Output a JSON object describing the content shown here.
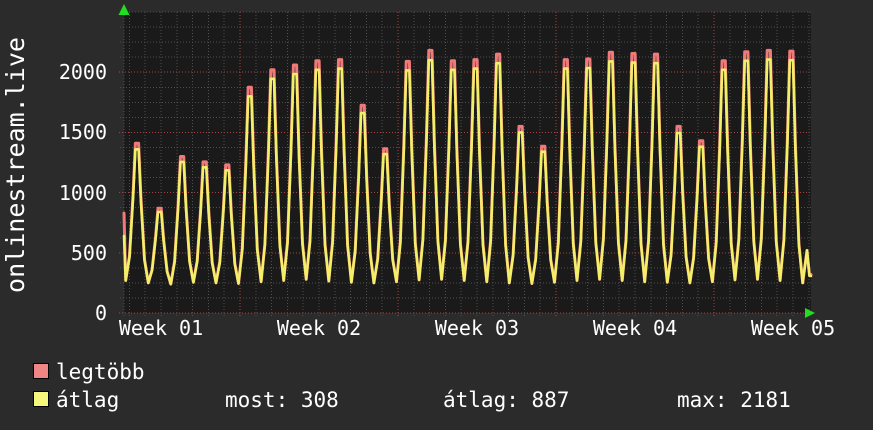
{
  "vertical_label": "onlinestream.live",
  "y_axis": {
    "ticks": [
      "0",
      "500",
      "1000",
      "1500",
      "2000"
    ]
  },
  "x_axis": {
    "labels": [
      "Week 01",
      "Week 02",
      "Week 03",
      "Week 04",
      "Week 05"
    ]
  },
  "legend": {
    "items": [
      {
        "label": "legtöbb",
        "color": "#f08585"
      },
      {
        "label": "átlag",
        "color": "#f6f67c"
      }
    ],
    "stats": [
      {
        "label": "most:",
        "value": "308"
      },
      {
        "label": "átlag:",
        "value": "887"
      },
      {
        "label": "max:",
        "value": "2181"
      }
    ]
  },
  "chart_data": {
    "type": "line",
    "title": "onlinestream.live",
    "vertical_label": "onlinestream.live",
    "x_tick_labels": [
      "Week 01",
      "Week 02",
      "Week 03",
      "Week 04",
      "Week 05"
    ],
    "y_ticks": [
      0,
      500,
      1000,
      1500,
      2000
    ],
    "ylim": [
      0,
      2500
    ],
    "grid": "dotted, minor every 125 y-units and ~0.7 day, major red every 500 y-units and every week",
    "legend_position": "bottom",
    "days_shown": 30.5,
    "series": [
      {
        "name": "legtöbb",
        "role": "daily maximum",
        "color": "#f07a7a",
        "daily_peaks": [
          1410,
          870,
          1300,
          1255,
          1230,
          1875,
          2020,
          2060,
          2095,
          2105,
          1725,
          1365,
          2090,
          2181,
          2095,
          2105,
          2150,
          1550,
          1385,
          2105,
          2110,
          2165,
          2155,
          2150,
          1550,
          1430,
          2095,
          2170,
          2181,
          2175
        ],
        "first_value": 830,
        "last_value": 320
      },
      {
        "name": "átlag",
        "role": "daily average",
        "color": "#f2ef68",
        "daily_peaks": [
          1360,
          840,
          1255,
          1210,
          1185,
          1800,
          1945,
          1985,
          2020,
          2030,
          1660,
          1320,
          2015,
          2100,
          2020,
          2030,
          2075,
          1500,
          1340,
          2030,
          2035,
          2090,
          2080,
          2075,
          1495,
          1380,
          2020,
          2095,
          2105,
          2100
        ],
        "first_value": 640,
        "last_value": 308
      }
    ],
    "daily_valleys": [
      270,
      250,
      240,
      255,
      250,
      245,
      260,
      270,
      280,
      265,
      255,
      250,
      260,
      275,
      280,
      270,
      260,
      250,
      245,
      255,
      270,
      280,
      270,
      260,
      255,
      250,
      260,
      275,
      280,
      270,
      250
    ],
    "stats": {
      "most": 308,
      "atlag": 887,
      "max": 2181
    },
    "accent_colors": {
      "major_grid": "#aa4444",
      "minor_grid": "#4e4e4e",
      "axis_arrow": "#22dd22",
      "plot_background": "#1a1a1a",
      "outer_background": "#2b2b2b",
      "text": "#ffffff"
    }
  }
}
